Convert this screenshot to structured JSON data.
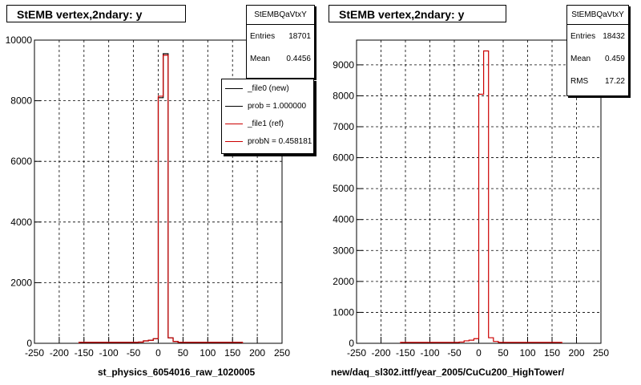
{
  "chart_data": [
    {
      "type": "bar",
      "title": "StEMB  vertex,2ndary: y",
      "xlabel": "st_physics_6054016_raw_1020005",
      "ylabel": "",
      "xlim": [
        -250,
        250
      ],
      "ylim": [
        0,
        10000
      ],
      "x_ticks": [
        -250,
        -200,
        -150,
        -100,
        -50,
        0,
        50,
        100,
        150,
        200,
        250
      ],
      "y_ticks": [
        0,
        2000,
        4000,
        6000,
        8000,
        10000
      ],
      "grid": true,
      "bin_width": 10,
      "series": [
        {
          "name": "_file0 (new)",
          "color": "#000000",
          "bins": [
            [
              -160,
              30
            ],
            [
              -150,
              30
            ],
            [
              -140,
              30
            ],
            [
              -130,
              30
            ],
            [
              -120,
              30
            ],
            [
              -110,
              30
            ],
            [
              -100,
              30
            ],
            [
              -90,
              30
            ],
            [
              -80,
              30
            ],
            [
              -70,
              30
            ],
            [
              -60,
              30
            ],
            [
              -50,
              30
            ],
            [
              -40,
              40
            ],
            [
              -30,
              80
            ],
            [
              -20,
              100
            ],
            [
              -10,
              150
            ],
            [
              0,
              8100
            ],
            [
              10,
              9550
            ],
            [
              20,
              180
            ],
            [
              30,
              60
            ],
            [
              40,
              30
            ],
            [
              50,
              30
            ],
            [
              60,
              30
            ],
            [
              70,
              30
            ],
            [
              80,
              30
            ],
            [
              90,
              30
            ],
            [
              100,
              30
            ],
            [
              110,
              30
            ],
            [
              120,
              30
            ],
            [
              130,
              30
            ],
            [
              140,
              30
            ],
            [
              150,
              30
            ],
            [
              160,
              30
            ]
          ]
        },
        {
          "name": "_file1 (ref)",
          "color": "#cc0000",
          "bins": [
            [
              -160,
              30
            ],
            [
              -150,
              30
            ],
            [
              -140,
              30
            ],
            [
              -130,
              30
            ],
            [
              -120,
              30
            ],
            [
              -110,
              30
            ],
            [
              -100,
              30
            ],
            [
              -90,
              30
            ],
            [
              -80,
              30
            ],
            [
              -70,
              30
            ],
            [
              -60,
              30
            ],
            [
              -50,
              30
            ],
            [
              -40,
              40
            ],
            [
              -30,
              80
            ],
            [
              -20,
              100
            ],
            [
              -10,
              150
            ],
            [
              0,
              8150
            ],
            [
              10,
              9500
            ],
            [
              20,
              180
            ],
            [
              30,
              60
            ],
            [
              40,
              30
            ],
            [
              50,
              30
            ],
            [
              60,
              30
            ],
            [
              70,
              30
            ],
            [
              80,
              30
            ],
            [
              90,
              30
            ],
            [
              100,
              30
            ],
            [
              110,
              30
            ],
            [
              120,
              30
            ],
            [
              130,
              30
            ],
            [
              140,
              30
            ],
            [
              150,
              30
            ],
            [
              160,
              30
            ]
          ]
        }
      ],
      "stats": {
        "name": "StEMBQaVtxY",
        "entries_label": "Entries",
        "entries": "18701",
        "mean_label": "Mean",
        "mean": "0.4456"
      },
      "legend": [
        {
          "label": "_file0 (new)",
          "color": "#000000"
        },
        {
          "label": "prob = 1.000000",
          "color": "#000000"
        },
        {
          "label": "_file1 (ref)",
          "color": "#cc0000"
        },
        {
          "label": "probN = 0.458181",
          "color": "#cc0000"
        }
      ]
    },
    {
      "type": "bar",
      "title": "StEMB  vertex,2ndary: y",
      "xlabel": "new/daq_sl302.ittf/year_2005/CuCu200_HighTower/",
      "ylabel": "",
      "xlim": [
        -250,
        250
      ],
      "ylim": [
        0,
        9800
      ],
      "x_ticks": [
        -250,
        -200,
        -150,
        -100,
        -50,
        0,
        50,
        100,
        150,
        200,
        250
      ],
      "y_ticks": [
        0,
        1000,
        2000,
        3000,
        4000,
        5000,
        6000,
        7000,
        8000,
        9000
      ],
      "grid": true,
      "bin_width": 10,
      "series": [
        {
          "name": "",
          "color": "#cc0000",
          "bins": [
            [
              -160,
              30
            ],
            [
              -150,
              30
            ],
            [
              -140,
              30
            ],
            [
              -130,
              30
            ],
            [
              -120,
              30
            ],
            [
              -110,
              30
            ],
            [
              -100,
              30
            ],
            [
              -90,
              30
            ],
            [
              -80,
              30
            ],
            [
              -70,
              30
            ],
            [
              -60,
              30
            ],
            [
              -50,
              30
            ],
            [
              -40,
              40
            ],
            [
              -30,
              80
            ],
            [
              -20,
              100
            ],
            [
              -10,
              150
            ],
            [
              0,
              8050
            ],
            [
              10,
              9450
            ],
            [
              20,
              180
            ],
            [
              30,
              60
            ],
            [
              40,
              30
            ],
            [
              50,
              30
            ],
            [
              60,
              30
            ],
            [
              70,
              30
            ],
            [
              80,
              30
            ],
            [
              90,
              30
            ],
            [
              100,
              30
            ],
            [
              110,
              30
            ],
            [
              120,
              30
            ],
            [
              130,
              30
            ],
            [
              140,
              30
            ],
            [
              150,
              30
            ],
            [
              160,
              30
            ]
          ]
        }
      ],
      "stats": {
        "name": "StEMBQaVtxY",
        "entries_label": "Entries",
        "entries": "18432",
        "mean_label": "Mean",
        "mean": "0.459",
        "rms_label": "RMS",
        "rms": "17.22"
      }
    }
  ]
}
